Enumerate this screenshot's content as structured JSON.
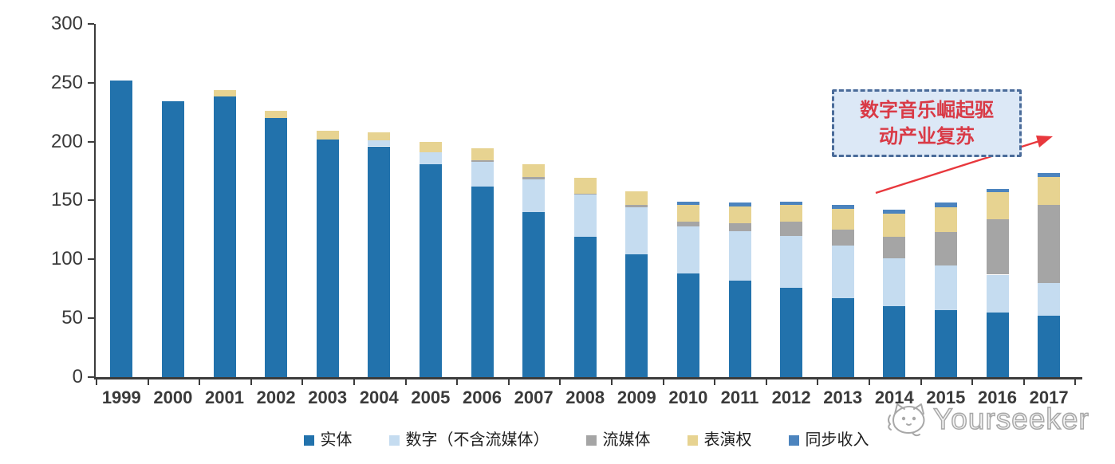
{
  "chart_data": {
    "type": "bar",
    "stacked": true,
    "title": "",
    "xlabel": "",
    "ylabel": "",
    "categories": [
      "1999",
      "2000",
      "2001",
      "2002",
      "2003",
      "2004",
      "2005",
      "2006",
      "2007",
      "2008",
      "2009",
      "2010",
      "2011",
      "2012",
      "2013",
      "2014",
      "2015",
      "2016",
      "2017"
    ],
    "series": [
      {
        "name": "实体",
        "color": "#2272AC",
        "values": [
          252,
          234,
          238,
          220,
          202,
          196,
          181,
          162,
          140,
          119,
          104,
          88,
          82,
          76,
          67,
          60,
          57,
          55,
          52
        ]
      },
      {
        "name": "数字（不含流媒体）",
        "color": "#C5DCF0",
        "values": [
          0,
          0,
          0,
          0,
          0,
          5,
          10,
          21,
          28,
          36,
          40,
          40,
          42,
          44,
          45,
          41,
          38,
          32,
          28
        ]
      },
      {
        "name": "流媒体",
        "color": "#A5A5A5",
        "values": [
          0,
          0,
          0,
          0,
          0,
          0,
          0,
          1,
          2,
          1,
          2,
          4,
          7,
          12,
          13,
          18,
          28,
          47,
          66
        ]
      },
      {
        "name": "表演权",
        "color": "#E7D391",
        "values": [
          0,
          0,
          6,
          6,
          7,
          7,
          9,
          10,
          11,
          13,
          12,
          14,
          14,
          14,
          18,
          20,
          21,
          23,
          24
        ]
      },
      {
        "name": "同步收入",
        "color": "#4C84BE",
        "values": [
          0,
          0,
          0,
          0,
          0,
          0,
          0,
          0,
          0,
          0,
          0,
          3,
          3,
          3,
          3,
          3,
          4,
          3,
          3
        ]
      }
    ],
    "ylim": [
      0,
      300
    ],
    "yticks": [
      0,
      50,
      100,
      150,
      200,
      250,
      300
    ],
    "grid": false,
    "legend_position": "bottom"
  },
  "annotation": {
    "line1": "数字音乐崛起驱",
    "line2": "动产业复苏",
    "text_color": "#D93A46",
    "box_fill": "#DCE8F6",
    "box_border": "#4A6B99",
    "arrow_color": "#E8383D"
  },
  "watermark": {
    "text": "Yourseeker",
    "color": "#A8A8A8"
  }
}
